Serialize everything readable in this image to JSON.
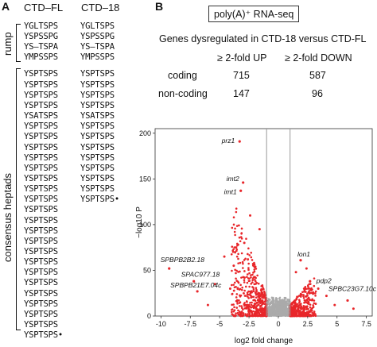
{
  "panel_a": {
    "letter": "A",
    "col_fl": "CTD–FL",
    "col_18": "CTD–18",
    "rump_label": "rump",
    "consensus_label": "consensus heptads",
    "fl_rump": [
      "YGLTSPS",
      "YSPSSPG",
      "YS–TSPA",
      "YMPSSPS"
    ],
    "fl_consensus": [
      "YSPTSPS",
      "YSPTSPS",
      "YSPTSPS",
      "YSPTSPS",
      "YSATSPS",
      "YSPTSPS",
      "YSPTSPS",
      "YSPTSPS",
      "YSPTSPS",
      "YSPTSPS",
      "YSPTSPS",
      "YSPTSPS",
      "YSPTSPS",
      "YSPTSPS",
      "YSPTSPS",
      "YSPTSPS",
      "YSPTSPS",
      "YSPTSPS",
      "YSPTSPS",
      "YSPTSPS",
      "YSPTSPS",
      "YSPTSPS",
      "YSPTSPS",
      "YSPTSPS",
      "YSPTSPS",
      "YSPTSPS",
      "YSPTSPS",
      "YSPTSPS"
    ],
    "fl_last": "YSPTSPS",
    "ctd18_rump": [
      "YGLTSPS",
      "YSPSSPG",
      "YS–TSPA",
      "YMPSSPS"
    ],
    "ctd18_consensus": [
      "YSPTSPS",
      "YSPTSPS",
      "YSPTSPS",
      "YSPTSPS",
      "YSATSPS",
      "YSPTSPS",
      "YSPTSPS",
      "YSPTSPS",
      "YSPTSPS",
      "YSPTSPS",
      "YSPTSPS",
      "YSPTSPS"
    ],
    "ctd18_last": "YSPTSPS",
    "end_marker": "•"
  },
  "panel_b": {
    "letter": "B",
    "title_box": "poly(A)⁺ RNA-seq",
    "subtitle": "Genes dysregulated in CTD-18 versus CTD-FL",
    "col_up": "≥ 2-fold UP",
    "col_down": "≥ 2-fold DOWN",
    "rows": [
      {
        "label": "coding",
        "up": "715",
        "down": "587"
      },
      {
        "label": "non-coding",
        "up": "147",
        "down": "96"
      }
    ]
  },
  "chart_data": {
    "type": "scatter",
    "title": "",
    "xlabel": "log2 fold change",
    "ylabel": "−log10 P",
    "xlim": [
      -10.5,
      8
    ],
    "ylim": [
      0,
      205
    ],
    "x_ticks": [
      "-10",
      "-7.5",
      "-5",
      "-2.5",
      "0",
      "2.5",
      "5",
      "7.5"
    ],
    "y_ticks": [
      "0",
      "50",
      "100",
      "150",
      "200"
    ],
    "thresholds_x": [
      -1,
      1
    ],
    "colors": {
      "significant": "#e8262a",
      "nonsignificant": "#aaaaaa",
      "threshold_line": "#999999"
    },
    "labeled_points": [
      {
        "label": "prz1",
        "x": -3.3,
        "y": 191
      },
      {
        "label": "imt2",
        "x": -3.0,
        "y": 146
      },
      {
        "label": "imt1",
        "x": -3.2,
        "y": 137
      },
      {
        "label": "SPBPB2B2.18",
        "x": -9.3,
        "y": 52
      },
      {
        "label": "SPAC977.18",
        "x": -7.2,
        "y": 38
      },
      {
        "label": "SPBPB21E7.04c",
        "x": -6.9,
        "y": 27
      },
      {
        "label": "lon1",
        "x": 1.9,
        "y": 61
      },
      {
        "label": "pdp2",
        "x": 2.7,
        "y": 38
      },
      {
        "label": "SPBC23G7.10c",
        "x": 5.9,
        "y": 17
      }
    ],
    "extra_significant": [
      {
        "x": -5.4,
        "y": 35
      },
      {
        "x": -4.6,
        "y": 65
      },
      {
        "x": -4.1,
        "y": 30
      },
      {
        "x": -3.8,
        "y": 55
      },
      {
        "x": -2.9,
        "y": 80
      },
      {
        "x": -2.4,
        "y": 110
      },
      {
        "x": -3.6,
        "y": 75
      },
      {
        "x": 3.4,
        "y": 30
      },
      {
        "x": 4.1,
        "y": 22
      },
      {
        "x": 2.4,
        "y": 52
      },
      {
        "x": 4.8,
        "y": 12
      },
      {
        "x": 6.4,
        "y": 8
      },
      {
        "x": -6.0,
        "y": 12
      },
      {
        "x": -1.6,
        "y": 95
      },
      {
        "x": 1.5,
        "y": 48
      }
    ]
  }
}
